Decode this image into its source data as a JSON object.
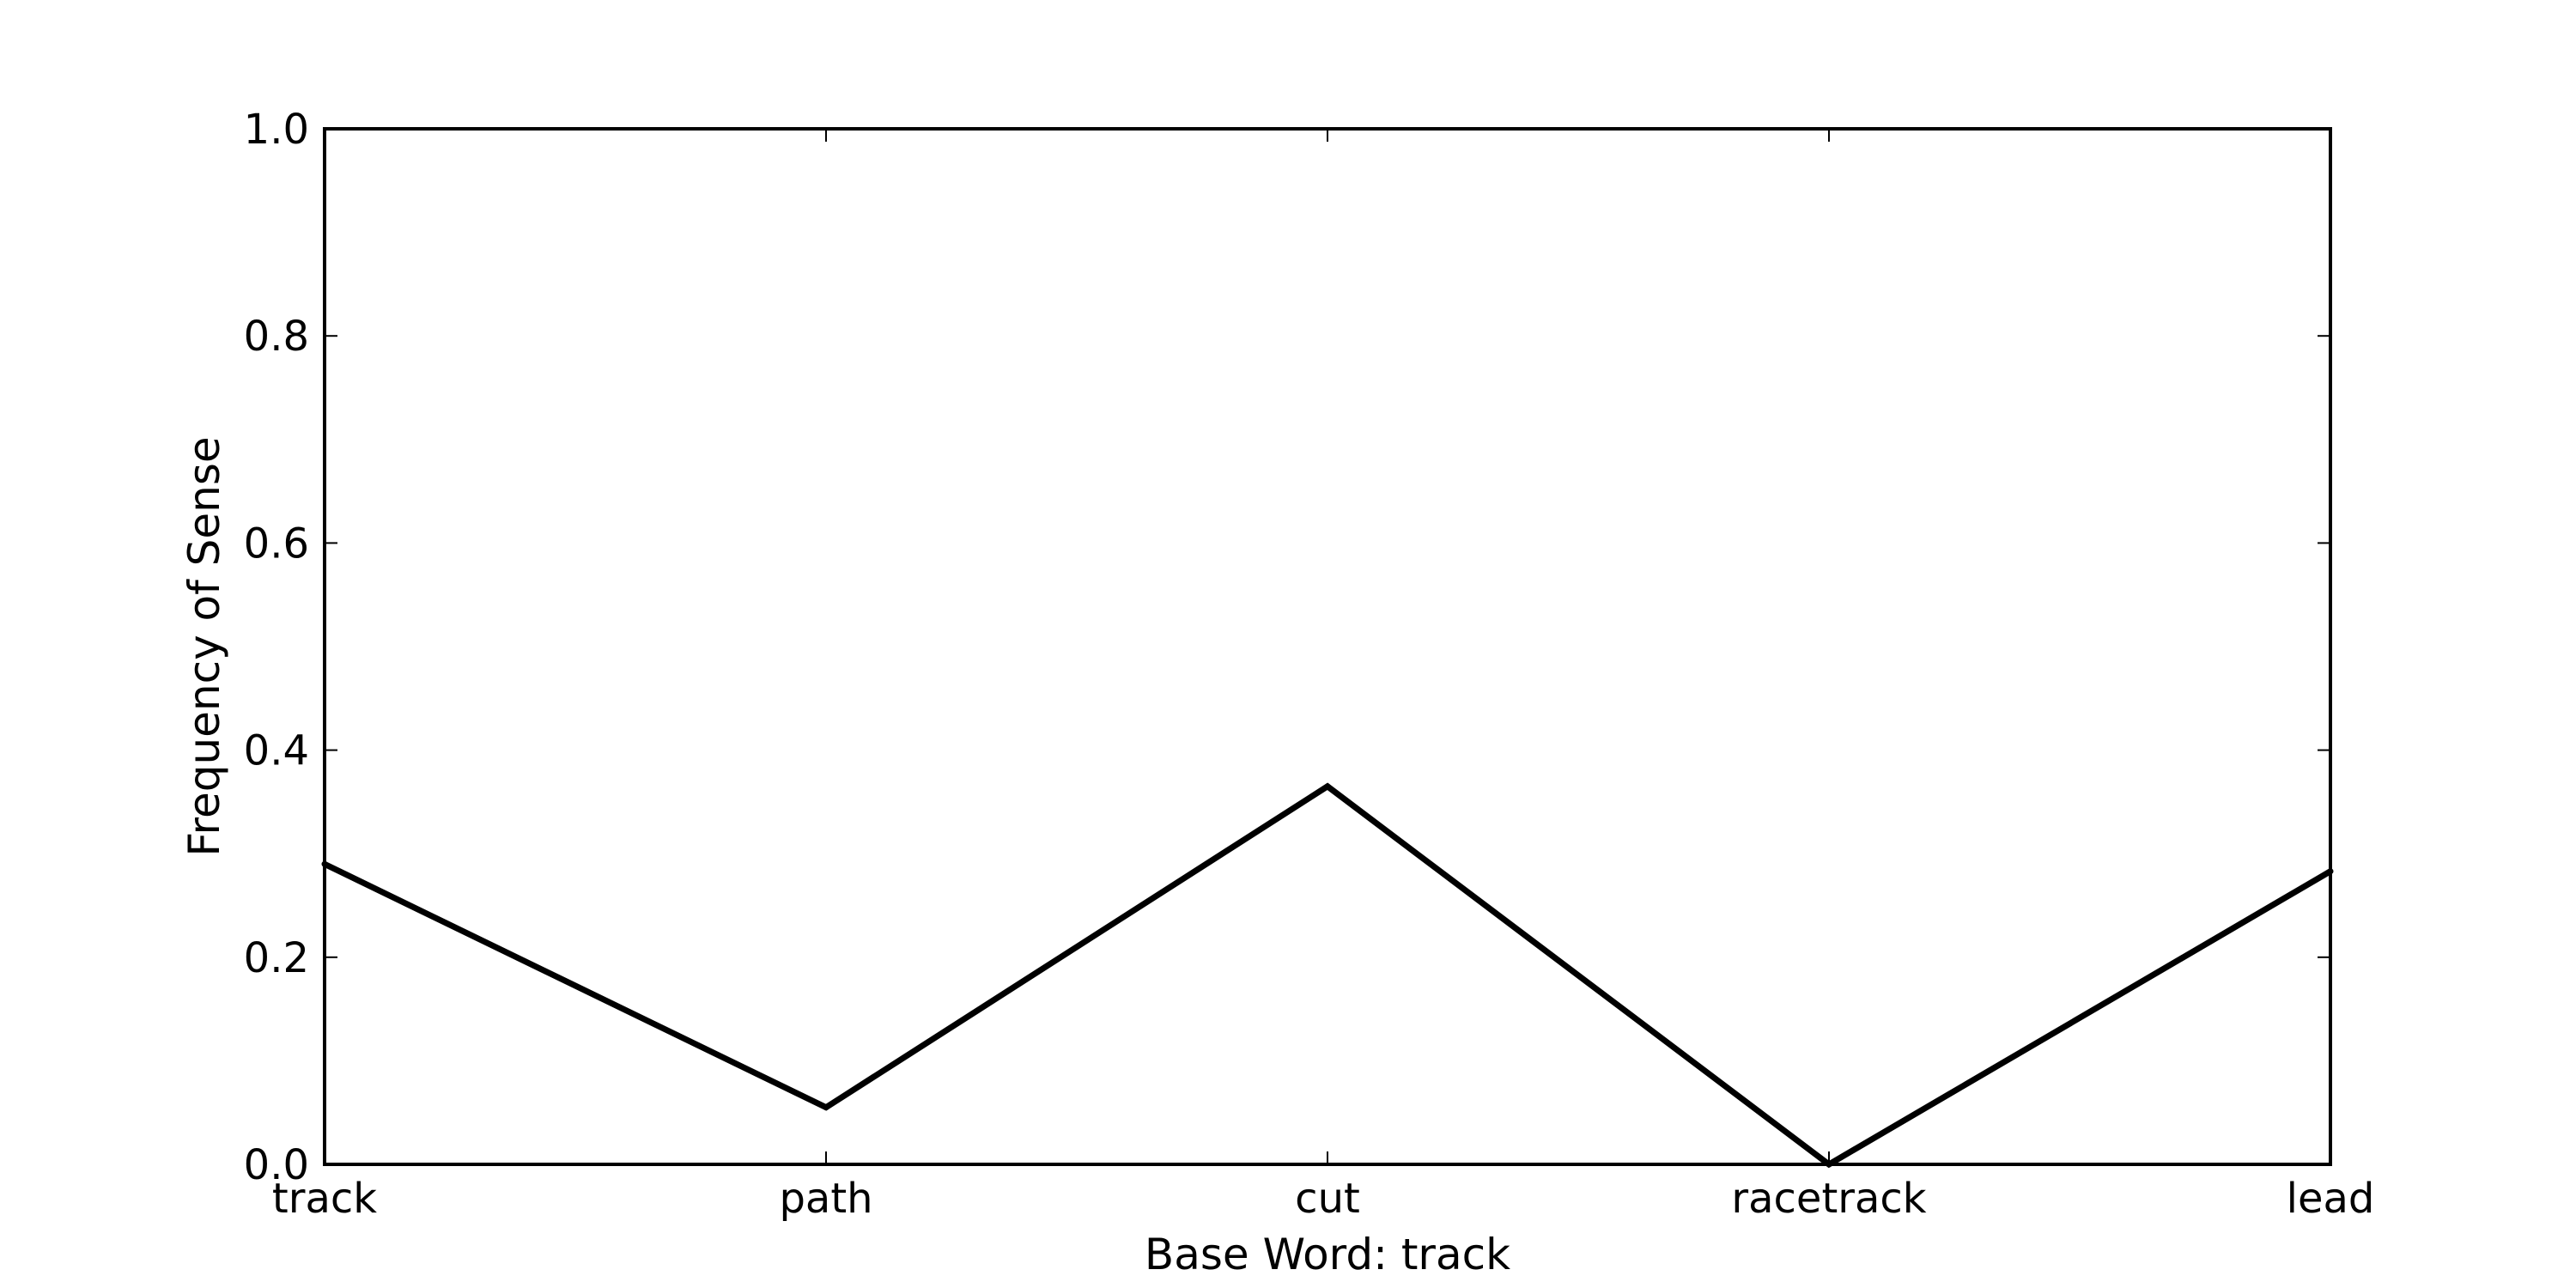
{
  "chart_data": {
    "type": "line",
    "categories": [
      "track",
      "path",
      "cut",
      "racetrack",
      "lead"
    ],
    "series": [
      {
        "values": [
          0.29,
          0.055,
          0.365,
          0.0,
          0.283
        ],
        "color": "#000000"
      }
    ],
    "xlabel": "Base Word: track",
    "ylabel": "Frequency of Sense",
    "ylim": [
      0.0,
      1.0
    ],
    "yticks": [
      "0.0",
      "0.2",
      "0.4",
      "0.6",
      "0.8",
      "1.0"
    ],
    "grid": false
  }
}
